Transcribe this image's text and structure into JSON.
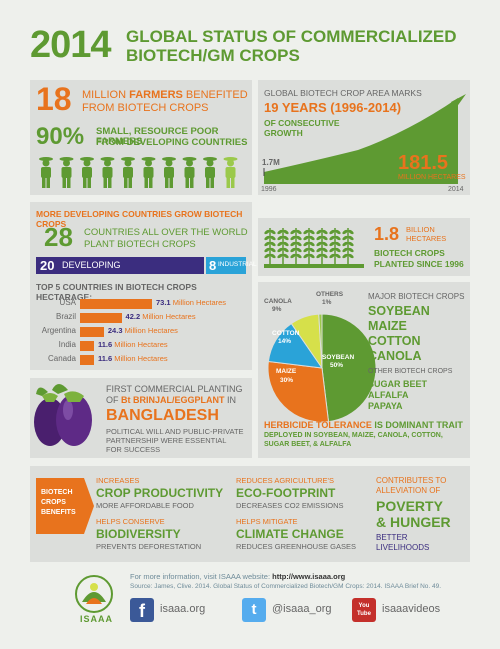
{
  "header": {
    "year": "2014",
    "title_line1": "GLOBAL STATUS OF COMMERCIALIZED",
    "title_line2": "BIOTECH/GM CROPS"
  },
  "farmers": {
    "big_number": "18",
    "line1_prefix": "MILLION ",
    "line1_bold": "FARMERS",
    "line1_suffix": " BENEFITED",
    "line2": "FROM BIOTECH CROPS",
    "pct": "90%",
    "pct_line1": "SMALL, RESOURCE POOR FARMERS",
    "pct_line2": "FROM DEVELOPING COUNTRIES",
    "figures_total": 10,
    "figures_highlighted": 9
  },
  "area_chart": {
    "heading": "GLOBAL BIOTECH CROP AREA MARKS",
    "years": "19 YEARS (1996-2014)",
    "sub1": "OF CONSECUTIVE",
    "sub2": "GROWTH",
    "start_label": "1.7M",
    "end_value": "181.5",
    "end_unit": "MILLION HECTARES",
    "x_start": "1996",
    "x_end": "2014"
  },
  "countries": {
    "heading": "MORE DEVELOPING COUNTRIES GROW BIOTECH CROPS",
    "big_number": "28",
    "line1": "COUNTRIES ALL OVER THE WORLD",
    "line2": "PLANT BIOTECH CROPS",
    "developing_num": "20",
    "developing_label": "DEVELOPING",
    "industrial_num": "8",
    "industrial_label": "INDUSTRIAL",
    "top5_heading": "TOP 5 COUNTRIES IN BIOTECH CROPS HECTARAGE:",
    "unit": "Million Hectares",
    "rows": [
      {
        "name": "USA",
        "value": "73.1",
        "share": 1.0
      },
      {
        "name": "Brazil",
        "value": "42.2",
        "share": 0.577
      },
      {
        "name": "Argentina",
        "value": "24.3",
        "share": 0.332
      },
      {
        "name": "India",
        "value": "11.6",
        "share": 0.159
      },
      {
        "name": "Canada",
        "value": "11.6",
        "share": 0.159
      }
    ]
  },
  "planted": {
    "value": "1.8",
    "unit1": "BILLION",
    "unit2": "HECTARES",
    "line1": "BIOTECH CROPS",
    "line2": "PLANTED SINCE 1996"
  },
  "pie": {
    "canola_label": "CANOLA",
    "canola_pct": "9%",
    "others_label": "OTHERS",
    "others_pct": "1%",
    "cotton_label": "COTTON",
    "cotton_pct": "14%",
    "maize_label": "MAIZE",
    "maize_pct": "30%",
    "soybean_label": "SOYBEAN",
    "soybean_pct": "50%",
    "slices": [
      {
        "name": "SOYBEAN",
        "value": 50,
        "color": "#5e9a32"
      },
      {
        "name": "MAIZE",
        "value": 30,
        "color": "#e8731d"
      },
      {
        "name": "COTTON",
        "value": 14,
        "color": "#2aa3d8"
      },
      {
        "name": "CANOLA",
        "value": 9,
        "color": "#d6e04a"
      },
      {
        "name": "OTHERS",
        "value": 1,
        "color": "#9bc94b"
      }
    ],
    "major_heading": "MAJOR BIOTECH CROPS",
    "major": [
      "SOYBEAN",
      "MAIZE",
      "COTTON",
      "CANOLA"
    ],
    "other_heading": "OTHER BIOTECH CROPS",
    "other": [
      "SUGAR BEET",
      "ALFALFA",
      "PAPAYA"
    ],
    "trait_title": "HERBICIDE TOLERANCE",
    "trait_suffix": " IS DOMINANT TRAIT",
    "trait_line1": "DEPLOYED IN SOYBEAN, MAIZE, CANOLA, COTTON,",
    "trait_line2": "SUGAR BEET, & ALFALFA"
  },
  "brinjal": {
    "line1": "FIRST COMMERCIAL PLANTING",
    "line2_prefix": "OF ",
    "line2_bold": "Bt BRINJAL/EGGPLANT",
    "line2_suffix": " IN",
    "country": "BANGLADESH",
    "desc1": "POLITICAL WILL AND PUBLIC-PRIVATE",
    "desc2": "PARTNERSHIP WERE ESSENTIAL",
    "desc3": "FOR SUCCESS"
  },
  "benefits": {
    "tag1": "BIOTECH",
    "tag2": "CROPS",
    "tag3": "BENEFITS",
    "items": [
      {
        "small": "INCREASES",
        "big": "CROP PRODUCTIVITY",
        "sub": "MORE AFFORDABLE FOOD"
      },
      {
        "small": "REDUCES AGRICULTURE'S",
        "big": "ECO-FOOTPRINT",
        "sub": "DECREASES CO2 EMISSIONS"
      },
      {
        "small": "HELPS CONSERVE",
        "big": "BIODIVERSITY",
        "sub": "PREVENTS DEFORESTATION"
      },
      {
        "small": "HELPS MITIGATE",
        "big": "CLIMATE CHANGE",
        "sub": "REDUCES GREENHOUSE GASES"
      }
    ],
    "poverty_small1": "CONTRIBUTES TO",
    "poverty_small2": "ALLEVIATION OF",
    "poverty_big1": "POVERTY",
    "poverty_big2": "& HUNGER",
    "poverty_sub1": "BETTER",
    "poverty_sub2": "LIVELIHOODS"
  },
  "footer": {
    "logo_text": "ISAAA",
    "info_prefix": "For more information, visit ISAAA website: ",
    "info_url": "http://www.isaaa.org",
    "source": "Source: James, Clive. 2014. Global Status of Commercialized Biotech/GM Crops: 2014. ISAAA Brief No. 49.",
    "facebook": "isaaa.org",
    "twitter": "@isaaa_org",
    "youtube": "isaaavideos",
    "youtube_icon_text": "You Tube"
  },
  "colors": {
    "green": "#5e9a32",
    "orange": "#e8731d",
    "blue": "#2aa3d8",
    "purple": "#3b2d7f"
  }
}
